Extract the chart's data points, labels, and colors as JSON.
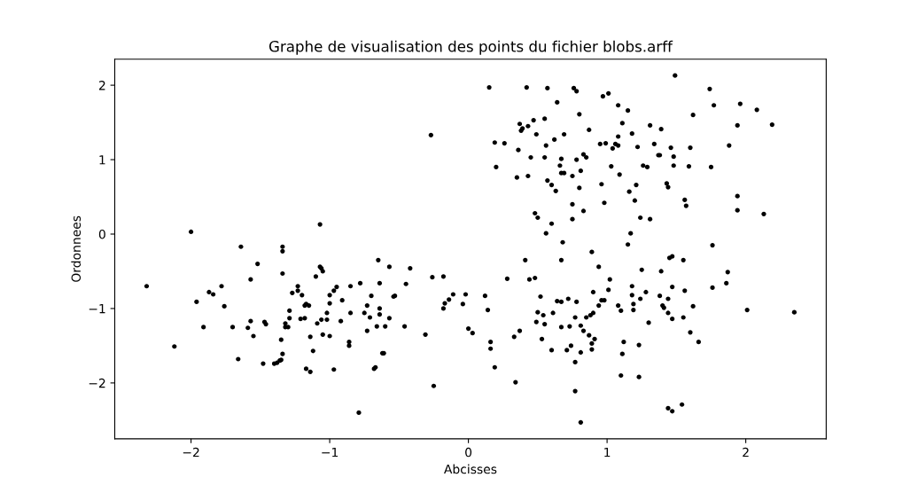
{
  "chart_data": {
    "type": "scatter",
    "title": "Graphe de visualisation des points du fichier blobs.arff",
    "xlabel": "Abcisses",
    "ylabel": "Ordonnees",
    "color": "#000000",
    "marker": "circle",
    "xlim": [
      -2.55,
      2.58
    ],
    "ylim": [
      -2.75,
      2.35
    ],
    "xticks": [
      -2,
      -1,
      0,
      1,
      2
    ],
    "yticks": [
      -2,
      -1,
      0,
      1,
      2
    ],
    "x": [
      -2.0,
      -1.64,
      -1.34,
      -1.34,
      -1.07,
      0.15,
      0.42,
      0.57,
      0.76,
      0.78,
      0.64,
      0.8,
      -0.27,
      0.37,
      0.47,
      0.55,
      0.43,
      0.39,
      0.38,
      0.87,
      0.49,
      0.69,
      0.62,
      0.56,
      0.19,
      0.26,
      0.36,
      0.45,
      0.55,
      0.67,
      0.78,
      0.83,
      0.85,
      0.66,
      0.67,
      0.69,
      0.75,
      0.81,
      0.2,
      0.35,
      0.43,
      0.57,
      0.6,
      0.63,
      0.8,
      0.75,
      0.83,
      0.48,
      0.5,
      0.75,
      0.6,
      0.56,
      0.68,
      0.89,
      1.49,
      1.74,
      0.97,
      1.01,
      1.08,
      1.15,
      1.77,
      1.96,
      2.08,
      1.62,
      1.11,
      1.31,
      1.39,
      1.94,
      2.19,
      1.18,
      1.08,
      0.95,
      0.99,
      1.06,
      1.08,
      1.04,
      1.22,
      1.34,
      1.46,
      1.6,
      1.88,
      1.37,
      1.38,
      1.48,
      1.03,
      1.26,
      1.29,
      1.48,
      1.59,
      1.75,
      1.09,
      0.96,
      1.21,
      1.16,
      1.43,
      1.44,
      1.2,
      0.98,
      1.56,
      1.57,
      1.94,
      1.94,
      2.13,
      1.24,
      1.31,
      1.17,
      1.15,
      1.76,
      0.94,
      1.45,
      1.47,
      1.55,
      1.25,
      1.39,
      1.87,
      1.02,
      1.86,
      0.9,
      1.01,
      1.18,
      1.47,
      1.56,
      1.76,
      0.96,
      0.98,
      1.18,
      1.28,
      1.24,
      1.38,
      1.44,
      0.94,
      1.08,
      1.19,
      0.9,
      0.88,
      1.1,
      1.19,
      1.4,
      1.41,
      1.44,
      1.47,
      1.55,
      1.62,
      2.01,
      2.35,
      1.3,
      0.87,
      0.91,
      0.89,
      0.89,
      1.12,
      1.23,
      1.11,
      1.6,
      1.66,
      1.1,
      1.23,
      1.44,
      1.47,
      1.54,
      -0.85,
      -0.78,
      -0.65,
      -0.57,
      -0.42,
      -0.64,
      -0.45,
      -0.7,
      -0.54,
      -0.53,
      -0.73,
      -0.85,
      -0.75,
      -0.64,
      -0.64,
      -0.71,
      -0.57,
      -0.66,
      -0.6,
      -0.46,
      -0.73,
      -0.86,
      -0.86,
      -0.62,
      -0.61,
      -0.67,
      -0.68,
      -0.79,
      -0.31,
      -0.25,
      -0.26,
      -0.18,
      -0.11,
      -0.14,
      -0.17,
      -0.18,
      -0.02,
      -0.04,
      0.0,
      0.03,
      0.12,
      0.14,
      0.16,
      0.16,
      0.19,
      0.28,
      0.41,
      0.44,
      0.48,
      0.33,
      0.37,
      0.34,
      0.67,
      0.52,
      0.5,
      0.49,
      0.54,
      0.55,
      0.53,
      0.61,
      0.64,
      0.67,
      0.72,
      0.78,
      0.67,
      0.73,
      0.77,
      0.85,
      0.81,
      0.83,
      0.6,
      0.71,
      0.74,
      0.81,
      0.77,
      0.77,
      0.81,
      -2.32,
      -2.12,
      -1.96,
      -1.91,
      -1.87,
      -1.84,
      -1.78,
      -1.76,
      -1.7,
      -1.66,
      -1.52,
      -1.57,
      -1.57,
      -1.59,
      -1.55,
      -1.47,
      -1.46,
      -1.48,
      -1.4,
      -1.38,
      -1.36,
      -1.35,
      -1.34,
      -1.35,
      -1.34,
      -1.29,
      -1.29,
      -1.32,
      -1.32,
      -1.3,
      -1.27,
      -1.23,
      -1.23,
      -1.2,
      -1.18,
      -1.17,
      -1.15,
      -1.21,
      -1.18,
      -1.17,
      -1.14,
      -1.14,
      -1.12,
      -1.1,
      -1.07,
      -1.06,
      -1.05,
      -1.09,
      -1.06,
      -1.05,
      -1.0,
      -1.0,
      -0.97,
      -0.95,
      -1.02,
      -1.02,
      -1.0,
      -0.91,
      -0.92,
      -0.97
    ],
    "values": [
      0.03,
      -0.17,
      -0.17,
      -0.23,
      0.13,
      1.97,
      1.97,
      1.96,
      1.96,
      1.92,
      1.77,
      1.61,
      1.33,
      1.48,
      1.53,
      1.55,
      1.45,
      1.42,
      1.39,
      1.4,
      1.34,
      1.34,
      1.27,
      1.19,
      1.23,
      1.22,
      1.13,
      1.03,
      1.03,
      1.01,
      1.0,
      1.07,
      1.03,
      0.92,
      0.82,
      0.82,
      0.78,
      0.85,
      0.9,
      0.76,
      0.78,
      0.72,
      0.66,
      0.58,
      0.62,
      0.4,
      0.31,
      0.28,
      0.22,
      0.2,
      0.14,
      0.01,
      -0.11,
      -0.24,
      2.13,
      1.95,
      1.85,
      1.89,
      1.73,
      1.66,
      1.73,
      1.75,
      1.67,
      1.6,
      1.49,
      1.46,
      1.41,
      1.46,
      1.47,
      1.35,
      1.31,
      1.21,
      1.22,
      1.21,
      1.19,
      1.15,
      1.17,
      1.21,
      1.16,
      1.16,
      1.19,
      1.06,
      1.06,
      1.04,
      0.91,
      0.92,
      0.9,
      0.92,
      0.91,
      0.9,
      0.8,
      0.67,
      0.66,
      0.57,
      0.68,
      0.63,
      0.45,
      0.42,
      0.46,
      0.38,
      0.51,
      0.32,
      0.27,
      0.22,
      0.2,
      0.01,
      -0.14,
      -0.15,
      -0.44,
      -0.32,
      -0.3,
      -0.35,
      -0.48,
      -0.5,
      -0.51,
      -0.61,
      -0.66,
      -0.78,
      -0.75,
      -0.7,
      -0.71,
      -0.76,
      -0.72,
      -0.89,
      -0.89,
      -0.82,
      -0.78,
      -0.87,
      -0.83,
      -0.87,
      -0.96,
      -0.96,
      -0.94,
      -1.06,
      -1.09,
      -1.03,
      -1.02,
      -0.96,
      -0.99,
      -1.06,
      -1.14,
      -1.12,
      -0.97,
      -1.02,
      -1.05,
      -1.19,
      -1.36,
      -1.41,
      -1.47,
      -1.55,
      -1.45,
      -1.49,
      -1.61,
      -1.32,
      -1.45,
      -1.9,
      -1.92,
      -2.34,
      -2.38,
      -2.29,
      -0.7,
      -0.66,
      -0.35,
      -0.44,
      -0.46,
      -0.66,
      -0.67,
      -0.83,
      -0.84,
      -0.83,
      -0.96,
      -1.06,
      -1.06,
      -1.0,
      -1.08,
      -1.12,
      -1.13,
      -1.24,
      -1.24,
      -1.24,
      -1.3,
      -1.45,
      -1.5,
      -1.6,
      -1.6,
      -1.79,
      -1.81,
      -2.4,
      -1.35,
      -2.04,
      -0.58,
      -0.57,
      -0.81,
      -0.88,
      -0.93,
      -1.0,
      -0.81,
      -0.94,
      -1.27,
      -1.33,
      -0.83,
      -1.02,
      -1.45,
      -1.54,
      -1.79,
      -0.6,
      -0.35,
      -0.61,
      -0.59,
      -1.38,
      -1.3,
      -1.99,
      -0.35,
      -0.84,
      -1.05,
      -1.18,
      -1.09,
      -1.21,
      -1.41,
      -1.06,
      -0.9,
      -0.91,
      -0.87,
      -0.91,
      -1.25,
      -1.24,
      -1.12,
      -1.12,
      -1.23,
      -1.3,
      -1.56,
      -1.56,
      -1.5,
      -1.59,
      -1.72,
      -2.11,
      -2.53,
      -0.7,
      -1.51,
      -0.91,
      -1.25,
      -0.78,
      -0.81,
      -0.7,
      -0.97,
      -1.25,
      -1.68,
      -0.4,
      -0.61,
      -1.17,
      -1.26,
      -1.37,
      -1.18,
      -1.21,
      -1.74,
      -1.74,
      -1.73,
      -1.7,
      -1.69,
      -1.61,
      -1.42,
      -0.53,
      -1.03,
      -1.13,
      -1.2,
      -1.25,
      -1.25,
      -0.79,
      -0.7,
      -0.76,
      -0.82,
      -0.96,
      -0.94,
      -0.96,
      -1.14,
      -1.13,
      -1.81,
      -1.85,
      -1.38,
      -1.57,
      -0.57,
      -0.44,
      -0.46,
      -0.5,
      -1.2,
      -1.15,
      -1.35,
      -0.82,
      -0.93,
      -0.76,
      -0.71,
      -1.06,
      -1.15,
      -1.37,
      -0.89,
      -1.17,
      -1.82
    ]
  }
}
